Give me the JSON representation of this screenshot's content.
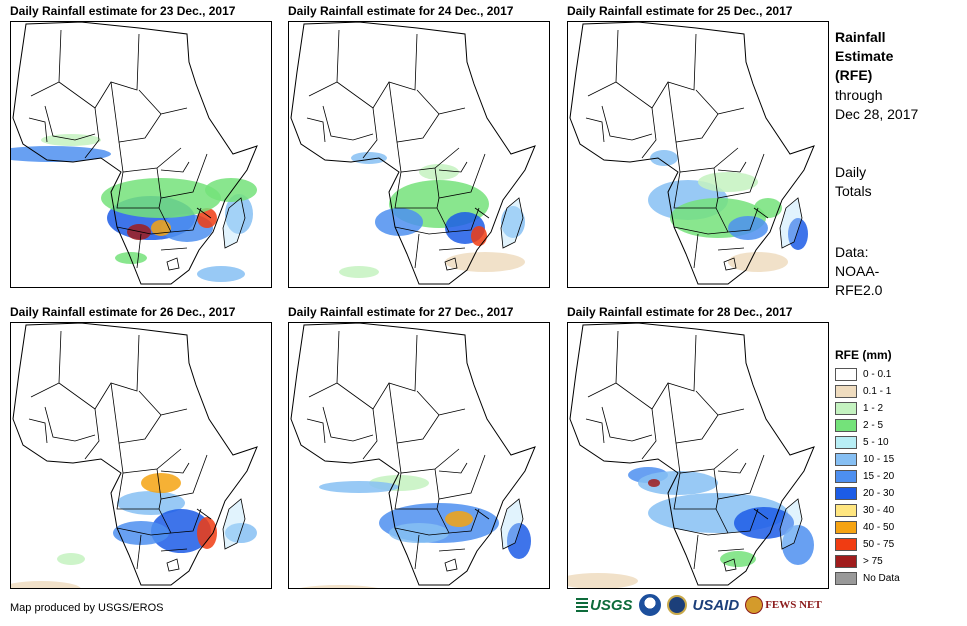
{
  "panels": [
    {
      "title": "Daily Rainfall estimate for 23 Dec., 2017"
    },
    {
      "title": "Daily Rainfall estimate for 24 Dec., 2017"
    },
    {
      "title": "Daily Rainfall estimate for 25 Dec., 2017"
    },
    {
      "title": "Daily Rainfall estimate for 26 Dec., 2017"
    },
    {
      "title": "Daily Rainfall estimate for 27 Dec., 2017"
    },
    {
      "title": "Daily Rainfall estimate for 28 Dec., 2017"
    }
  ],
  "side": {
    "title_line1": "Rainfall",
    "title_line2": "Estimate",
    "title_line3": "(RFE)",
    "through_line1": "through",
    "through_line2": "Dec 28, 2017",
    "totals_line1": "Daily",
    "totals_line2": "Totals",
    "data_line1": "Data:",
    "data_line2": "NOAA-",
    "data_line3": "RFE2.0"
  },
  "legend": {
    "title": "RFE (mm)",
    "items": [
      {
        "label": "0 - 0.1",
        "color": "#ffffff"
      },
      {
        "label": "0.1 - 1",
        "color": "#efdcbf"
      },
      {
        "label": "1 - 2",
        "color": "#c4f2c0"
      },
      {
        "label": "2 - 5",
        "color": "#74e27a"
      },
      {
        "label": "5 - 10",
        "color": "#b8eef5"
      },
      {
        "label": "10 - 15",
        "color": "#86bff3"
      },
      {
        "label": "15 - 20",
        "color": "#4d8ff0"
      },
      {
        "label": "20 - 30",
        "color": "#1c5ce6"
      },
      {
        "label": "30 - 40",
        "color": "#ffe680"
      },
      {
        "label": "40 - 50",
        "color": "#f5a312"
      },
      {
        "label": "50 - 75",
        "color": "#f03c12"
      },
      {
        "label": "> 75",
        "color": "#a01c1c"
      },
      {
        "label": "No Data",
        "color": "#999999"
      }
    ]
  },
  "credit": "Map produced by USGS/EROS",
  "logos": {
    "usgs": "USGS",
    "usaid": "USAID",
    "fews": "FEWS NET"
  }
}
